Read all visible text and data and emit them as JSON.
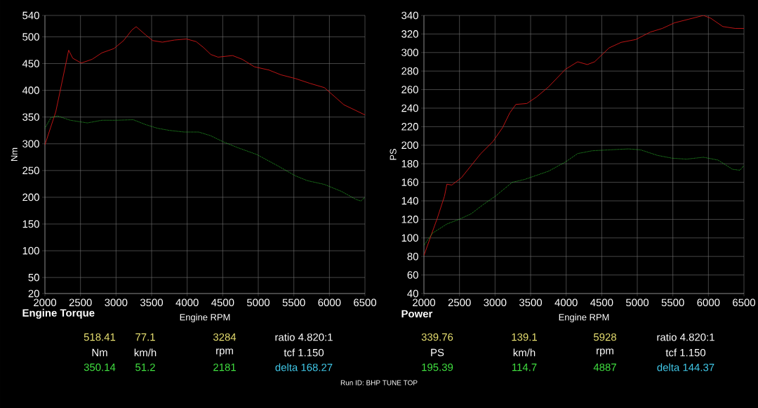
{
  "chart_data": [
    {
      "type": "line",
      "title": "Engine Torque",
      "xlabel": "Engine RPM",
      "ylabel": "Nm",
      "xlim": [
        2000,
        6500
      ],
      "xticks": [
        2000,
        2500,
        3000,
        3500,
        4000,
        4500,
        5000,
        5500,
        6000,
        6500
      ],
      "ylim": [
        20,
        540
      ],
      "yticks": [
        20,
        50,
        100,
        150,
        200,
        250,
        300,
        350,
        400,
        450,
        500,
        540
      ],
      "grid": true,
      "series": [
        {
          "color": "#d01818",
          "line_style": "solid",
          "x": [
            2000,
            2153,
            2334,
            2391,
            2511,
            2664,
            2800,
            2970,
            3106,
            3225,
            3283,
            3413,
            3515,
            3651,
            3821,
            3991,
            4127,
            4230,
            4332,
            4434,
            4638,
            4774,
            4944,
            5148,
            5318,
            5522,
            5726,
            5930,
            6032,
            6203,
            6500
          ],
          "values": [
            298,
            360,
            475,
            460,
            451,
            458,
            470,
            478,
            493,
            513,
            519,
            504,
            493,
            490,
            494,
            496,
            491,
            480,
            467,
            462,
            465,
            458,
            444,
            438,
            429,
            422,
            413,
            405,
            393,
            373,
            354
          ]
        },
        {
          "color": "#30d030",
          "line_style": "dotted",
          "x": [
            2000,
            2085,
            2177,
            2357,
            2596,
            2800,
            3004,
            3242,
            3413,
            3583,
            3753,
            3957,
            4162,
            4332,
            4502,
            4706,
            4978,
            5285,
            5522,
            5692,
            5930,
            6169,
            6374,
            6442,
            6500
          ],
          "values": [
            329,
            349,
            352,
            344,
            339,
            344,
            344,
            345,
            336,
            329,
            325,
            322,
            322,
            315,
            304,
            293,
            280,
            258,
            240,
            231,
            224,
            211,
            196,
            193,
            200
          ]
        }
      ],
      "annotations": [
        "518.41",
        "77.1",
        "3284",
        "ratio 4.820:1",
        "Nm",
        "km/h",
        "rpm",
        "tcf 1.150",
        "350.14",
        "51.2",
        "2181",
        "delta 168.27",
        "Run ID: BHP TUNE TOP"
      ]
    },
    {
      "type": "line",
      "title": "Power",
      "xlabel": "Engine RPM",
      "ylabel": "PS",
      "xlim": [
        2000,
        6500
      ],
      "xticks": [
        2000,
        2500,
        3000,
        3500,
        4000,
        4500,
        5000,
        5500,
        6000,
        6500
      ],
      "ylim": [
        40,
        340
      ],
      "yticks": [
        40,
        60,
        80,
        100,
        120,
        140,
        160,
        180,
        200,
        220,
        240,
        260,
        280,
        300,
        320,
        340
      ],
      "grid": true,
      "series": [
        {
          "color": "#d01818",
          "line_style": "solid",
          "x": [
            2000,
            2102,
            2187,
            2289,
            2323,
            2391,
            2528,
            2664,
            2800,
            2970,
            3106,
            3208,
            3293,
            3447,
            3583,
            3753,
            3991,
            4162,
            4298,
            4400,
            4604,
            4774,
            4978,
            5182,
            5352,
            5522,
            5726,
            5930,
            6032,
            6203,
            6374,
            6500
          ],
          "values": [
            81,
            103,
            121,
            145,
            158,
            157,
            165,
            178,
            191,
            204,
            219,
            235,
            244,
            245,
            252,
            263,
            282,
            290,
            287,
            290,
            305,
            311,
            314,
            322,
            326,
            332,
            336,
            340,
            337,
            328,
            326,
            326
          ]
        },
        {
          "color": "#30d030",
          "line_style": "dotted",
          "x": [
            2000,
            2119,
            2323,
            2494,
            2664,
            2834,
            3004,
            3242,
            3413,
            3753,
            3991,
            4162,
            4366,
            4604,
            4876,
            5046,
            5285,
            5489,
            5692,
            5930,
            6134,
            6340,
            6442,
            6500
          ],
          "values": [
            92,
            105,
            115,
            120,
            126,
            136,
            145,
            160,
            163,
            172,
            182,
            191,
            194,
            195,
            196,
            195,
            189,
            186,
            185,
            187,
            184,
            174,
            173,
            178
          ]
        }
      ],
      "annotations": [
        "339.76",
        "139.1",
        "5928",
        "ratio 4.820:1",
        "PS",
        "km/h",
        "rpm",
        "tcf 1.150",
        "195.39",
        "114.7",
        "4887",
        "delta 144.37"
      ]
    }
  ]
}
